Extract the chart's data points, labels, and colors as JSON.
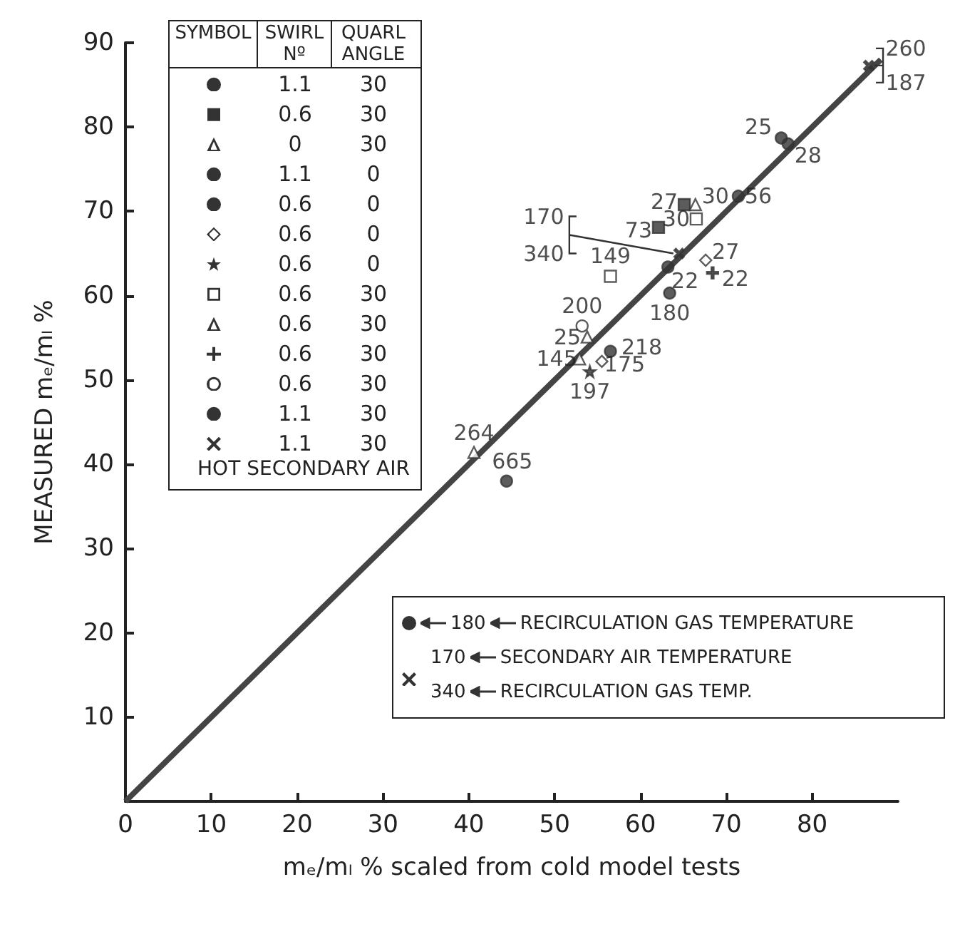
{
  "chart_data": {
    "type": "scatter",
    "xlabel": "mₑ/mₗ % scaled from cold model tests",
    "ylabel": "MEASURED mₑ/mₗ %",
    "xlim": [
      0,
      90
    ],
    "ylim": [
      0,
      90
    ],
    "xticks": [
      0,
      10,
      20,
      30,
      40,
      50,
      60,
      70,
      80
    ],
    "yticks": [
      10,
      20,
      30,
      40,
      50,
      60,
      70,
      80,
      90
    ],
    "grid": false,
    "series": [
      {
        "type": "scatter",
        "marker": "circle",
        "color": "#333333",
        "x": [
          71.4,
          63.2
        ],
        "values": [
          71.8,
          63.4
        ]
      },
      {
        "type": "scatter",
        "marker": "square",
        "color": "#333333",
        "x": [
          65.1,
          62.1
        ],
        "values": [
          70.8,
          68.1
        ]
      },
      {
        "type": "scatter",
        "marker": "triangle",
        "color": "#ffffff",
        "x": [
          53.8,
          40.6,
          52.9
        ],
        "values": [
          55.1,
          41.4,
          52.5
        ]
      },
      {
        "type": "scatter",
        "marker": "circle",
        "color": "#333333",
        "x": [
          76.4,
          77.2
        ],
        "values": [
          78.7,
          78.0
        ]
      },
      {
        "type": "scatter",
        "marker": "circle",
        "color": "#333333",
        "x": [
          56.5
        ],
        "values": [
          53.4
        ]
      },
      {
        "type": "scatter",
        "marker": "diamond",
        "color": "#ffffff",
        "x": [
          67.6,
          55.5
        ],
        "values": [
          64.2,
          52.2
        ]
      },
      {
        "type": "scatter",
        "marker": "star",
        "color": "#333333",
        "x": [
          54.1
        ],
        "values": [
          51.0
        ]
      },
      {
        "type": "scatter",
        "marker": "square",
        "color": "#ffffff",
        "x": [
          66.5,
          56.5
        ],
        "values": [
          69.1,
          62.3
        ]
      },
      {
        "type": "scatter",
        "marker": "triangle",
        "color": "#ffffff",
        "x": [
          66.4
        ],
        "values": [
          70.8
        ]
      },
      {
        "type": "scatter",
        "marker": "plus",
        "color": "#333333",
        "x": [
          68.4
        ],
        "values": [
          62.7
        ]
      },
      {
        "type": "scatter",
        "marker": "circle",
        "color": "#ffffff",
        "x": [
          53.2
        ],
        "values": [
          56.4
        ]
      },
      {
        "type": "scatter",
        "marker": "circle",
        "color": "#333333",
        "x": [
          63.4,
          44.4
        ],
        "values": [
          60.3,
          38.0
        ]
      },
      {
        "type": "scatter",
        "marker": "cross",
        "color": "#333333",
        "x": [
          64.5,
          86.6
        ],
        "values": [
          65.0,
          87.3
        ]
      },
      {
        "type": "line",
        "marker": "none",
        "line_style": "solid",
        "color": "#444444",
        "x": [
          0,
          88
        ],
        "values": [
          0,
          88
        ]
      }
    ],
    "annotations": [
      "SYMBOL",
      "SWIRL Nº",
      "QUARL ANGLE",
      "1.1",
      "30",
      "0.6",
      "30",
      "0",
      "30",
      "1.1",
      "0",
      "0.6",
      "0",
      "0.6",
      "0",
      "0.6",
      "0",
      "0.6",
      "30",
      "0.6",
      "30",
      "0.6",
      "30",
      "0.6",
      "30",
      "1.1",
      "30",
      "1.1",
      "30",
      "HOT SECONDARY AIR",
      "180",
      "RECIRCULATION GAS TEMPERATURE",
      "170",
      "SECONDARY AIR TEMPERATURE",
      "340",
      "RECIRCULATION GAS TEMP.",
      {
        "text": "25",
        "x": 76.4,
        "y": 78.7
      },
      {
        "text": "28",
        "x": 77.2,
        "y": 78.0
      },
      {
        "text": "56",
        "x": 71.4,
        "y": 71.8
      },
      {
        "text": "27",
        "x": 65.1,
        "y": 70.8
      },
      {
        "text": "30",
        "x": 66.4,
        "y": 70.8
      },
      {
        "text": "30",
        "x": 66.5,
        "y": 69.1
      },
      {
        "text": "73",
        "x": 62.1,
        "y": 68.1
      },
      {
        "text": "170",
        "x": 64.5,
        "y": 65.0
      },
      {
        "text": "340",
        "x": 64.5,
        "y": 65.0
      },
      {
        "text": "149",
        "x": 56.5,
        "y": 62.3
      },
      {
        "text": "22",
        "x": 63.2,
        "y": 63.4
      },
      {
        "text": "27",
        "x": 67.6,
        "y": 64.2
      },
      {
        "text": "22",
        "x": 68.4,
        "y": 62.7
      },
      {
        "text": "180",
        "x": 63.4,
        "y": 60.3
      },
      {
        "text": "200",
        "x": 53.2,
        "y": 56.4
      },
      {
        "text": "25",
        "x": 53.8,
        "y": 55.1
      },
      {
        "text": "218",
        "x": 56.5,
        "y": 53.4
      },
      {
        "text": "145",
        "x": 52.9,
        "y": 52.5
      },
      {
        "text": "175",
        "x": 55.5,
        "y": 52.2
      },
      {
        "text": "197",
        "x": 54.1,
        "y": 51.0
      },
      {
        "text": "264",
        "x": 40.6,
        "y": 41.4
      },
      {
        "text": "665",
        "x": 44.4,
        "y": 38.0
      },
      {
        "text": "260",
        "x": 86.6,
        "y": 87.3
      },
      {
        "text": "187",
        "x": 86.6,
        "y": 87.3
      }
    ]
  }
}
